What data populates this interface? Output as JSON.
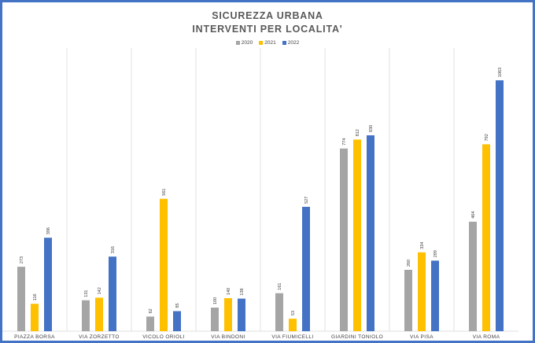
{
  "chart_data": {
    "type": "bar",
    "title": "SICUREZZA URBANA",
    "subtitle": "INTERVENTI PER LOCALITA'",
    "categories": [
      "PIAZZA BORSA",
      "VIA ZORZETTO",
      "VICOLO ORIOLI",
      "VIA BINDONI",
      "VIA FIUMICELLI",
      "GIARDINI TONIOLO",
      "VIA PISA",
      "VIA ROMA"
    ],
    "series": [
      {
        "name": "2020",
        "color": "#a5a5a5",
        "values": [
          273,
          131,
          62,
          100,
          161,
          774,
          260,
          464
        ]
      },
      {
        "name": "2021",
        "color": "#ffc000",
        "values": [
          116,
          142,
          561,
          140,
          53,
          812,
          334,
          792
        ]
      },
      {
        "name": "2022",
        "color": "#4472c4",
        "values": [
          396,
          316,
          85,
          138,
          527,
          830,
          299,
          1063
        ]
      }
    ],
    "ylim": [
      0,
      1200
    ],
    "legend_position": "top",
    "grid": false
  }
}
